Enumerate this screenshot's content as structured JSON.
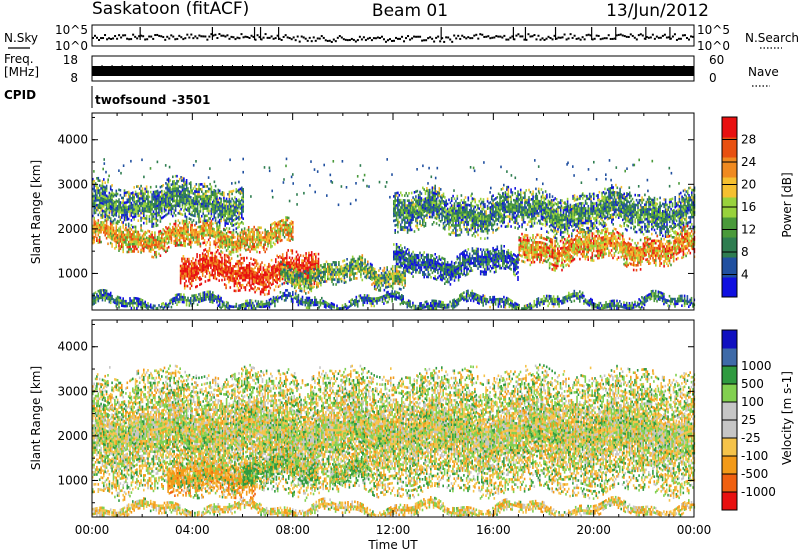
{
  "header": {
    "station": "Saskatoon (fitACF)",
    "beam": "Beam 01",
    "date": "13/Jun/2012"
  },
  "noise_panel": {
    "left_label": "N.Sky",
    "right_label": "N.Search",
    "tick_top": "10^5",
    "tick_bottom": "10^0"
  },
  "freq_panel": {
    "left_label_1": "Freq.",
    "left_label_2": "[MHz]",
    "left_ticks": [
      "18",
      "8"
    ],
    "right_ticks": [
      "60",
      "0"
    ],
    "right_label": "Nave"
  },
  "cpid_panel": {
    "label": "CPID",
    "program": "twofsound",
    "id": "-3501"
  },
  "axes": {
    "ylabel": "Slant Range [km]",
    "xlabel": "Time UT",
    "y_ticks": [
      "1000",
      "2000",
      "3000",
      "4000"
    ],
    "x_ticks": [
      "00:00",
      "04:00",
      "08:00",
      "12:00",
      "16:00",
      "20:00",
      "00:00"
    ]
  },
  "colors": {
    "power": [
      "#1010e0",
      "#2050a0",
      "#2e7d50",
      "#4a9a3a",
      "#98d23c",
      "#f5c030",
      "#f08a20",
      "#e85010",
      "#e81010"
    ],
    "velocity": [
      "#e81010",
      "#f06010",
      "#f39a18",
      "#f5c34a",
      "#c6c6c6",
      "#c6c6c6",
      "#82d050",
      "#2f9a40",
      "#3e6aa8",
      "#1010c0"
    ]
  },
  "chart_data": [
    {
      "type": "heatmap",
      "title": "",
      "quantity": "Power",
      "xlabel": "Time UT",
      "ylabel": "Slant Range [km]",
      "xlim": [
        0,
        24
      ],
      "ylim": [
        180,
        4600
      ],
      "colorbar_label": "Power [dB]",
      "colorbar_range": [
        0,
        32
      ],
      "colorbar_ticks": [
        "4",
        "8",
        "12",
        "16",
        "20",
        "24",
        "28"
      ],
      "regions": [
        {
          "t": [
            3.5,
            9.0
          ],
          "r": [
            650,
            1400
          ],
          "value": 29
        },
        {
          "t": [
            0.0,
            8.0
          ],
          "r": [
            1500,
            2100
          ],
          "value": 20
        },
        {
          "t": [
            0.0,
            6.0
          ],
          "r": [
            2100,
            3000
          ],
          "value": 10
        },
        {
          "t": [
            7.5,
            12.5
          ],
          "r": [
            700,
            1250
          ],
          "value": 13
        },
        {
          "t": [
            12.0,
            24.0
          ],
          "r": [
            1900,
            2800
          ],
          "value": 10
        },
        {
          "t": [
            17.0,
            24.0
          ],
          "r": [
            1200,
            1900
          ],
          "value": 22
        },
        {
          "t": [
            12.0,
            17.0
          ],
          "r": [
            900,
            1500
          ],
          "value": 6
        },
        {
          "t": [
            0.0,
            24.0
          ],
          "r": [
            200,
            450
          ],
          "value": 8
        }
      ]
    },
    {
      "type": "heatmap",
      "title": "",
      "quantity": "Velocity",
      "xlabel": "Time UT",
      "ylabel": "Slant Range [km]",
      "xlim": [
        0,
        24
      ],
      "ylim": [
        180,
        4600
      ],
      "colorbar_label": "Velocity [m s-1]",
      "colorbar_ticks": [
        "-1000",
        "-500",
        "-100",
        "-25",
        "25",
        "100",
        "500",
        "1000"
      ],
      "regions": [
        {
          "t": [
            3.0,
            6.5
          ],
          "r": [
            650,
            1400
          ],
          "value": -300
        },
        {
          "t": [
            6.0,
            9.0
          ],
          "r": [
            900,
            1600
          ],
          "value": 150
        },
        {
          "t": [
            9.5,
            11.0
          ],
          "r": [
            900,
            1400
          ],
          "value": 120
        },
        {
          "t": [
            0.0,
            24.0
          ],
          "r": [
            700,
            3400
          ],
          "value": 0
        },
        {
          "t": [
            0.0,
            24.0
          ],
          "r": [
            200,
            450
          ],
          "value": -50
        }
      ]
    }
  ]
}
